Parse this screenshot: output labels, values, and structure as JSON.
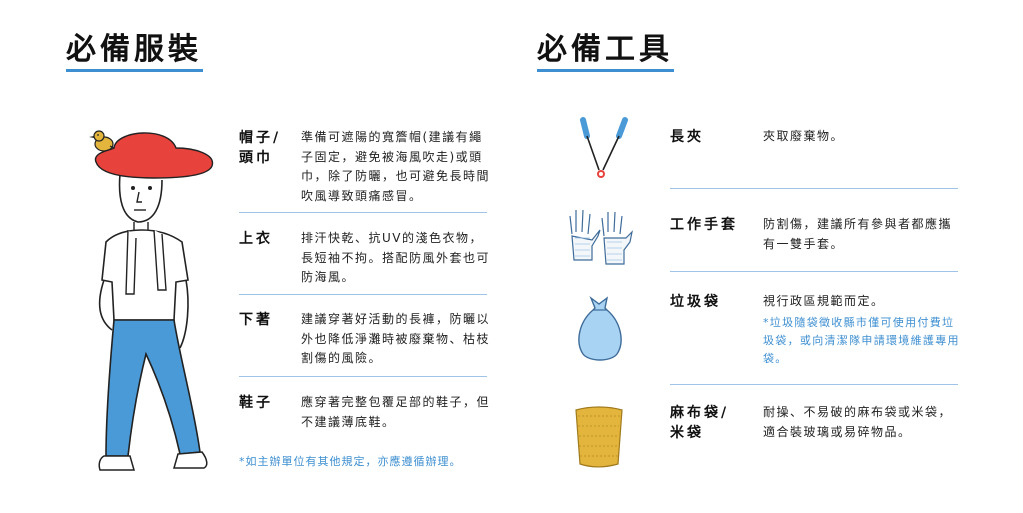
{
  "clothing": {
    "title": "必備服裝",
    "items": [
      {
        "label": "帽子/\n頭巾",
        "desc": "準備可遮陽的寬簷帽(建議有繩子固定，避免被海風吹走)或頭巾，除了防曬，也可避免長時間吹風導致頭痛感冒。"
      },
      {
        "label": "上衣",
        "desc": "排汗快乾、抗UV的淺色衣物，長短袖不拘。搭配防風外套也可防海風。"
      },
      {
        "label": "下著",
        "desc": "建議穿著好活動的長褲，防曬以外也降低淨灘時被廢棄物、枯枝割傷的風險。"
      },
      {
        "label": "鞋子",
        "desc": "應穿著完整包覆足部的鞋子，但不建議薄底鞋。"
      }
    ],
    "footnote": "*如主辦單位有其他規定，亦應遵循辦理。"
  },
  "tools": {
    "title": "必備工具",
    "items": [
      {
        "label": "長夾",
        "desc": "夾取廢棄物。",
        "icon": "tongs-icon"
      },
      {
        "label": "工作手套",
        "desc": "防割傷，建議所有參與者都應攜有一雙手套。",
        "icon": "gloves-icon"
      },
      {
        "label": "垃圾袋",
        "desc": "視行政區規範而定。",
        "note": "*垃圾隨袋徵收縣市僅可使用付費垃圾袋，或向清潔隊申請環境維護專用袋。",
        "icon": "trash-bag-icon"
      },
      {
        "label": "麻布袋/\n米袋",
        "desc": "耐操、不易破的麻布袋或米袋，適合裝玻璃或易碎物品。",
        "icon": "sack-icon"
      }
    ]
  },
  "colors": {
    "accent": "#3e8fd1",
    "divider": "#9ec5e8",
    "hat": "#e8423c",
    "pants": "#4a9ad8",
    "bag": "#a9d3f2",
    "sack": "#e3b53c",
    "tongs": "#4a9ad8"
  }
}
